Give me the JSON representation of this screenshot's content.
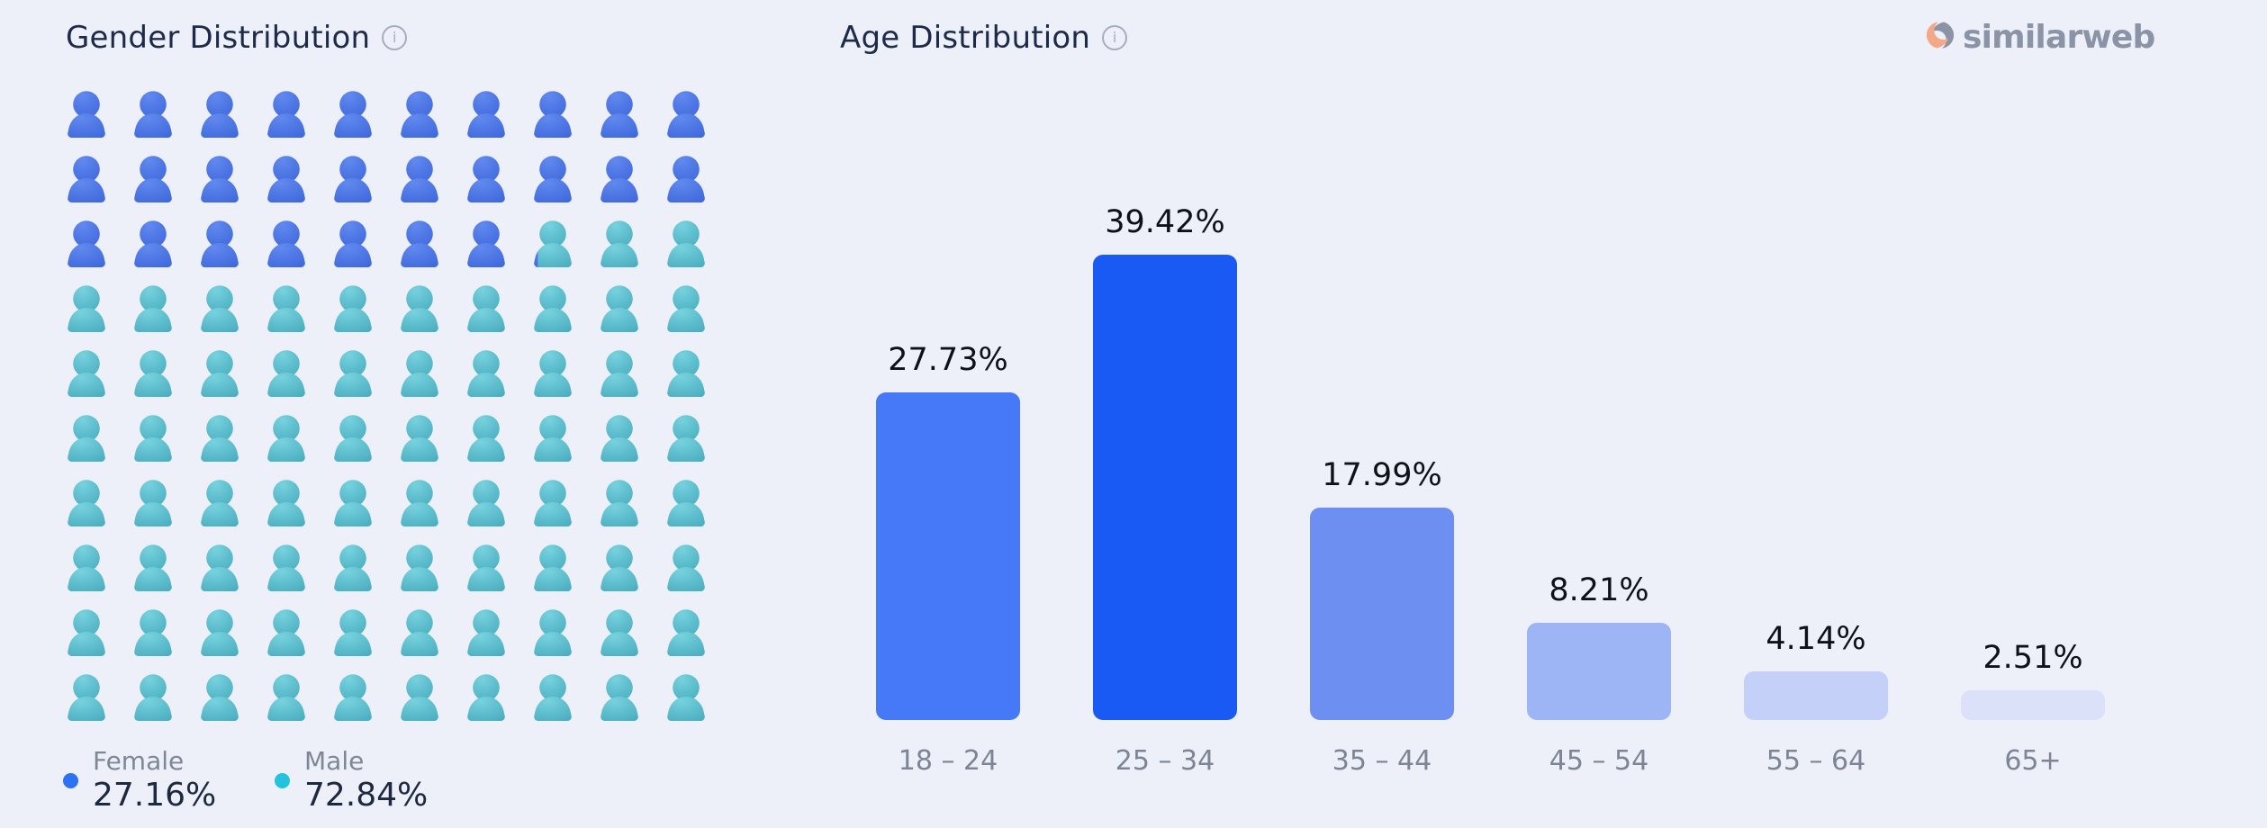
{
  "page": {
    "background": "#edf0f9"
  },
  "brand": {
    "text": "similarweb",
    "mark_gray": "#8a94a6",
    "mark_peach": "#f4a888"
  },
  "gender": {
    "title": "Gender Distribution",
    "info_tooltip": "i",
    "legend": [
      {
        "label": "Female",
        "value": "27.16%"
      },
      {
        "label": "Male",
        "value": "72.84%"
      }
    ]
  },
  "age": {
    "title": "Age Distribution",
    "info_tooltip": "i"
  },
  "chart_data": [
    {
      "type": "pictogram",
      "title": "Gender Distribution",
      "icon": "person-icon",
      "grid": {
        "columns": 10,
        "rows": 10,
        "total_icons": 100,
        "percent_per_icon": 1,
        "fill_order": "left-to-right-top-to-bottom"
      },
      "series": [
        {
          "name": "Female",
          "value": 27.16,
          "legend_color": "#2d72f2",
          "icon_gradient": [
            "#6189ef",
            "#3c65da"
          ]
        },
        {
          "name": "Male",
          "value": 72.84,
          "legend_color": "#22c3de",
          "icon_gradient": [
            "#77d2de",
            "#46aabd"
          ]
        }
      ],
      "legend_position": "bottom"
    },
    {
      "type": "bar",
      "title": "Age Distribution",
      "categories": [
        "18 – 24",
        "25 – 34",
        "35 – 44",
        "45 – 54",
        "55 – 64",
        "65+"
      ],
      "values": [
        27.73,
        39.42,
        17.99,
        8.21,
        4.14,
        2.51
      ],
      "value_labels": [
        "27.73%",
        "39.42%",
        "17.99%",
        "8.21%",
        "4.14%",
        "2.51%"
      ],
      "bar_colors": [
        "#4579f7",
        "#1a5af4",
        "#6d8ff1",
        "#9db4f5",
        "#c5d0f8",
        "#dce1fa"
      ],
      "ylim": [
        0,
        42
      ],
      "grid_lines": false,
      "axis_line": false,
      "value_label_position": "above-bar",
      "category_label_position": "below-bar"
    }
  ]
}
